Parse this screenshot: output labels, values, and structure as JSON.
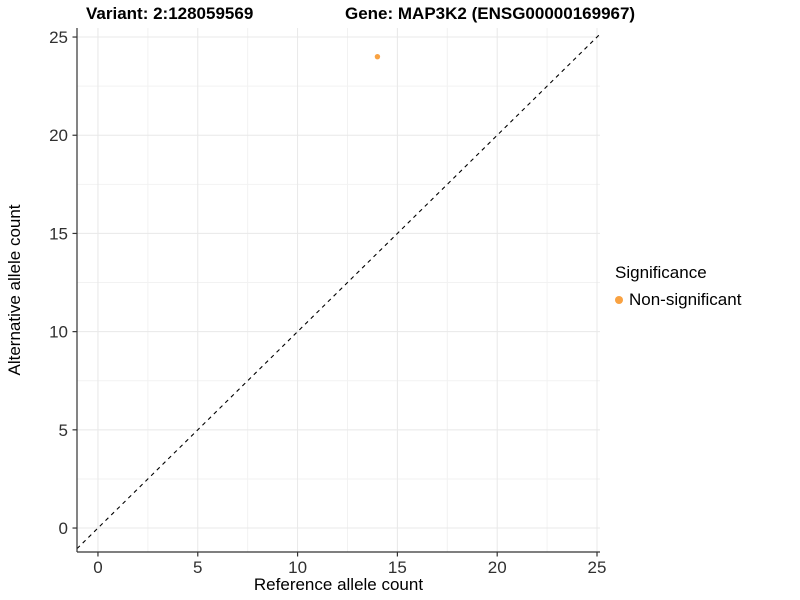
{
  "titles": {
    "variant": "Variant: 2:128059569",
    "gene": "Gene: MAP3K2 (ENSG00000169967)"
  },
  "legend": {
    "title": "Significance",
    "items": [
      {
        "label": "Non-significant",
        "color": "#F9A242"
      }
    ]
  },
  "chart_data": {
    "type": "scatter",
    "xlabel": "Reference allele count",
    "ylabel": "Alternative allele count",
    "xlim": [
      -1.05,
      25.15
    ],
    "ylim": [
      -1.22,
      25.46
    ],
    "xticks": [
      0,
      5,
      10,
      15,
      20,
      25
    ],
    "yticks": [
      0,
      5,
      10,
      15,
      20,
      25
    ],
    "minor_step": 2.5,
    "grid": true,
    "legend_position": "right",
    "series": [
      {
        "name": "Non-significant",
        "color": "#F9A242",
        "points": [
          {
            "x": 14,
            "y": 24
          }
        ]
      }
    ],
    "reference_line": {
      "type": "identity",
      "style": "dashed",
      "color": "#000000"
    }
  },
  "colors": {
    "background": "#FFFFFF",
    "axis_line": "#333333",
    "tick": "#333333",
    "grid_major": "#E8E8E8",
    "grid_minor": "#F2F2F2",
    "tick_text": "#303030",
    "text": "#000000"
  }
}
